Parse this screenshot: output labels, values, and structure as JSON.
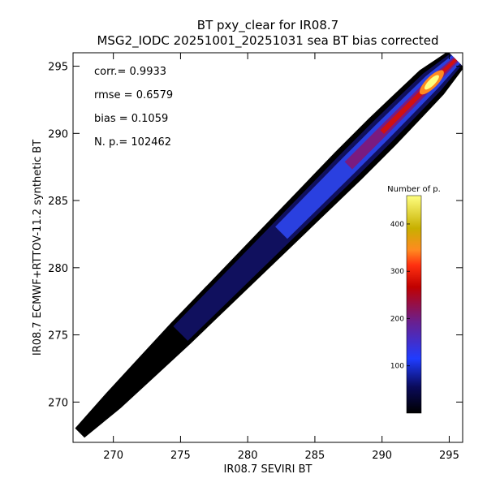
{
  "chart_data": {
    "type": "heatmap",
    "title": "BT pxy_clear for IR08.7",
    "subtitle": "MSG2_IODC 20251001_20251031 sea BT bias corrected",
    "xlabel": "IR08.7 SEVIRI BT",
    "ylabel": "IR08.7 ECMWF+RTTOV-11.2 synthetic BT",
    "xlim": [
      267,
      296
    ],
    "ylim": [
      267,
      296
    ],
    "x_ticks": [
      270,
      275,
      280,
      285,
      290,
      295
    ],
    "y_ticks": [
      270,
      275,
      280,
      285,
      290,
      295
    ],
    "x_tick_labels": [
      "270",
      "275",
      "280",
      "285",
      "290",
      "295"
    ],
    "y_tick_labels": [
      "270",
      "275",
      "280",
      "285",
      "290",
      "295"
    ],
    "grid": false,
    "stats": [
      {
        "label": "corr.= 0.9933"
      },
      {
        "label": "rmse = 0.6579"
      },
      {
        "label": "bias = 0.1059"
      },
      {
        "label": "N. p.=  102462"
      }
    ],
    "density_ridge": {
      "x": [
        267.5,
        270,
        272.5,
        275,
        277.5,
        280,
        282.5,
        285,
        287.5,
        290,
        292,
        293.7,
        295.5
      ],
      "y": [
        267.7,
        270.1,
        272.6,
        275.1,
        277.6,
        280.1,
        282.6,
        285.1,
        287.6,
        290.1,
        292.1,
        293.8,
        295.5
      ],
      "half_width": [
        0.35,
        0.55,
        0.65,
        0.75,
        0.8,
        0.85,
        0.9,
        0.95,
        1.0,
        1.0,
        0.95,
        0.9,
        0.6
      ],
      "counts": [
        3,
        8,
        12,
        20,
        30,
        45,
        70,
        110,
        170,
        230,
        320,
        460,
        140
      ]
    },
    "colorbar": {
      "title": "Number of p.",
      "range": [
        0,
        460
      ],
      "ticks": [
        100,
        200,
        300,
        400
      ],
      "tick_labels": [
        "100",
        "200",
        "300",
        "400"
      ],
      "placement": "lower-right inside plot",
      "stops": [
        "#000000",
        "#0a0a5a",
        "#1f3cff",
        "#6a1f8f",
        "#c00000",
        "#ff3010",
        "#ff8a20",
        "#c8b000",
        "#ffff80"
      ]
    }
  }
}
